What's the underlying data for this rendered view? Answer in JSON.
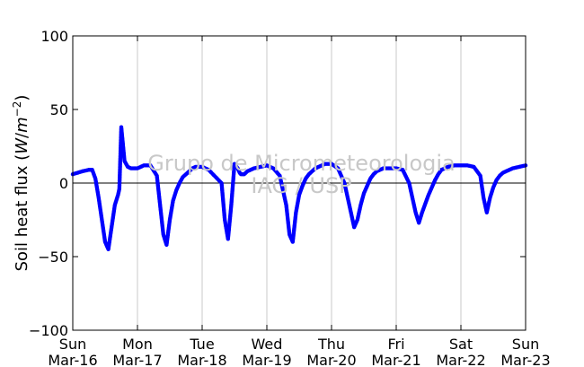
{
  "chart_data": {
    "type": "scatter",
    "ylabel": "Soil heat flux ($W/m^{-2}$)",
    "ylabel_parts": {
      "prefix": "Soil heat flux (",
      "W": "W",
      "slash": "/",
      "m": "m",
      "exp": "−2",
      "suffix": ")"
    },
    "ylim": [
      -100,
      100
    ],
    "yticks": [
      100,
      50,
      0,
      -50,
      -100
    ],
    "ytick_labels": [
      "100",
      "50",
      "0",
      "−50",
      "−100"
    ],
    "xlim": [
      "2014-03-16",
      "2014-03-23"
    ],
    "xticks": [
      {
        "day": "Sun",
        "date": "Mar-16"
      },
      {
        "day": "Mon",
        "date": "Mar-17"
      },
      {
        "day": "Tue",
        "date": "Mar-18"
      },
      {
        "day": "Wed",
        "date": "Mar-19"
      },
      {
        "day": "Thu",
        "date": "Mar-20"
      },
      {
        "day": "Fri",
        "date": "Mar-21"
      },
      {
        "day": "Sat",
        "date": "Mar-22"
      },
      {
        "day": "Sun",
        "date": "Mar-23"
      }
    ],
    "grid": "vertical",
    "zero_line": true,
    "series_color": "#0000ff",
    "watermark": [
      "Grupo de Micrometeorologia",
      "IAG / USP"
    ],
    "series": [
      {
        "x_days": [
          0,
          0.15,
          0.25,
          0.3,
          0.35,
          0.4,
          0.45,
          0.5,
          0.55,
          0.6,
          0.65,
          0.7,
          0.72,
          0.75,
          0.8,
          0.85,
          0.9,
          0.95,
          0.98,
          1.0,
          1.1,
          1.2,
          1.3,
          1.35,
          1.4,
          1.45,
          1.5,
          1.55,
          1.6,
          1.65,
          1.7,
          1.75,
          1.8,
          1.85,
          1.9,
          2.0,
          2.1,
          2.3,
          2.35,
          2.4,
          2.45,
          2.5,
          2.55,
          2.58,
          2.6,
          2.62,
          2.65,
          2.7,
          2.75,
          2.8,
          2.9,
          3.0,
          3.1,
          3.2,
          3.3,
          3.35,
          3.4,
          3.45,
          3.5,
          3.55,
          3.6,
          3.65,
          3.7,
          3.75,
          3.8,
          3.9,
          4.0,
          4.1,
          4.2,
          4.3,
          4.35,
          4.4,
          4.45,
          4.5,
          4.55,
          4.6,
          4.65,
          4.7,
          4.75,
          4.8,
          4.9,
          5.0,
          5.1,
          5.2,
          5.3,
          5.35,
          5.4,
          5.45,
          5.5,
          5.55,
          5.6,
          5.65,
          5.7,
          5.75,
          5.8,
          5.9,
          6.0,
          6.1,
          6.2,
          6.3,
          6.35,
          6.4,
          6.45,
          6.5,
          6.55,
          6.6,
          6.65,
          6.7,
          6.75,
          6.8,
          6.9,
          7.0
        ],
        "y": [
          6,
          8,
          9,
          9,
          3,
          -10,
          -25,
          -40,
          -45,
          -30,
          -15,
          -8,
          -4,
          38,
          15,
          11,
          10,
          10,
          10,
          10,
          12,
          12,
          5,
          -15,
          -35,
          -42,
          -25,
          -12,
          -5,
          0,
          4,
          6,
          8,
          10,
          11,
          11,
          9,
          0,
          -25,
          -38,
          -15,
          13,
          10,
          7,
          6,
          6,
          6,
          8,
          9,
          10,
          11,
          12,
          10,
          5,
          -15,
          -35,
          -40,
          -20,
          -8,
          -2,
          3,
          6,
          8,
          10,
          11,
          13,
          13,
          10,
          0,
          -20,
          -30,
          -25,
          -15,
          -7,
          -2,
          3,
          6,
          8,
          9,
          10,
          10,
          10,
          9,
          0,
          -20,
          -27,
          -20,
          -14,
          -8,
          -3,
          2,
          6,
          9,
          10,
          11,
          12,
          12,
          12,
          11,
          5,
          -10,
          -20,
          -10,
          -3,
          2,
          5,
          7,
          8,
          9,
          10,
          11,
          12
        ]
      }
    ]
  }
}
